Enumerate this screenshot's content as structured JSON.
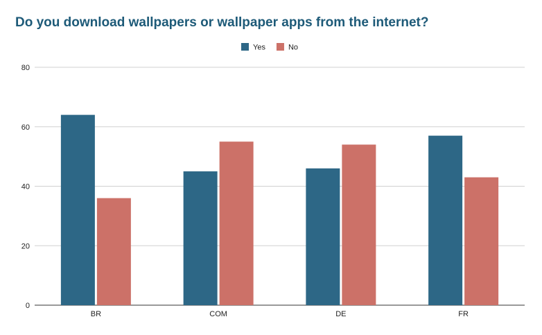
{
  "chart_data": {
    "type": "bar",
    "title": "Do you download wallpapers or wallpaper apps from the internet?",
    "xlabel": "",
    "ylabel": "",
    "categories": [
      "BR",
      "COM",
      "DE",
      "FR"
    ],
    "series": [
      {
        "name": "Yes",
        "color": "#2d6786",
        "values": [
          64,
          45,
          46,
          57
        ]
      },
      {
        "name": "No",
        "color": "#cc7168",
        "values": [
          36,
          55,
          54,
          43
        ]
      }
    ],
    "ylim": [
      0,
      80
    ],
    "yticks": [
      "0",
      "20",
      "40",
      "60",
      "80"
    ],
    "grid": true,
    "legend_position": "top-center"
  }
}
